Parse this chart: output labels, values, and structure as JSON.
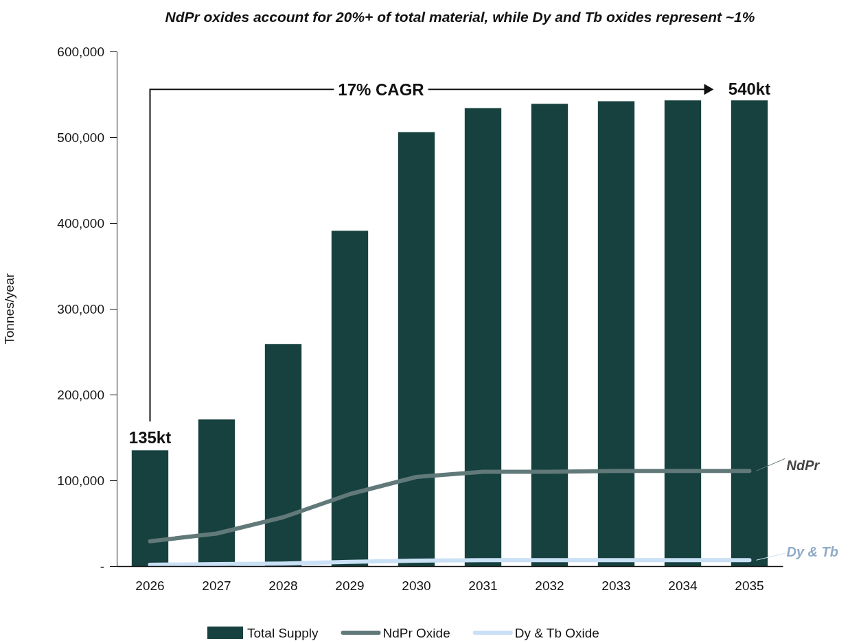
{
  "chart_data": {
    "type": "bar",
    "title": "NdPr oxides account for 20%+ of total material, while Dy and Tb oxides represent ~1%",
    "ylabel": "Tonnes/year",
    "categories": [
      "2026",
      "2027",
      "2028",
      "2029",
      "2030",
      "2031",
      "2032",
      "2033",
      "2034",
      "2035"
    ],
    "series": [
      {
        "name": "Total Supply",
        "color": "#17413f",
        "values": [
          135000,
          171000,
          259000,
          391000,
          506000,
          534000,
          539000,
          542000,
          543000,
          543000
        ]
      },
      {
        "name": "NdPr Oxide",
        "type": "line",
        "color": "#62797a",
        "values": [
          29000,
          38000,
          57000,
          84000,
          104000,
          110000,
          110000,
          111000,
          111000,
          111000
        ]
      },
      {
        "name": "Dy & Tb Oxide",
        "type": "line",
        "color": "#c9e0f5",
        "values": [
          1600,
          2400,
          3000,
          5000,
          6400,
          7000,
          7000,
          7000,
          7000,
          7000
        ]
      }
    ],
    "ylim": [
      0,
      600000
    ],
    "yticks": [
      {
        "value": 0,
        "label": "-"
      },
      {
        "value": 100000,
        "label": "100,000"
      },
      {
        "value": 200000,
        "label": "200,000"
      },
      {
        "value": 300000,
        "label": "300,000"
      },
      {
        "value": 400000,
        "label": "400,000"
      },
      {
        "value": 500000,
        "label": "500,000"
      },
      {
        "value": 600000,
        "label": "600,000"
      }
    ],
    "grid": false,
    "legend": "bottom",
    "marker": "none",
    "line_style": "solid",
    "annotations": [
      {
        "text": "135kt",
        "x": "2026",
        "y": 135000
      },
      {
        "text": "540kt",
        "x": "2035",
        "y": 543000
      },
      "17% CAGR",
      {
        "text": "NdPr",
        "x": "2035",
        "y": 111000
      },
      {
        "text": "Dy & Tb",
        "x": "2035",
        "y": 7000
      }
    ]
  }
}
